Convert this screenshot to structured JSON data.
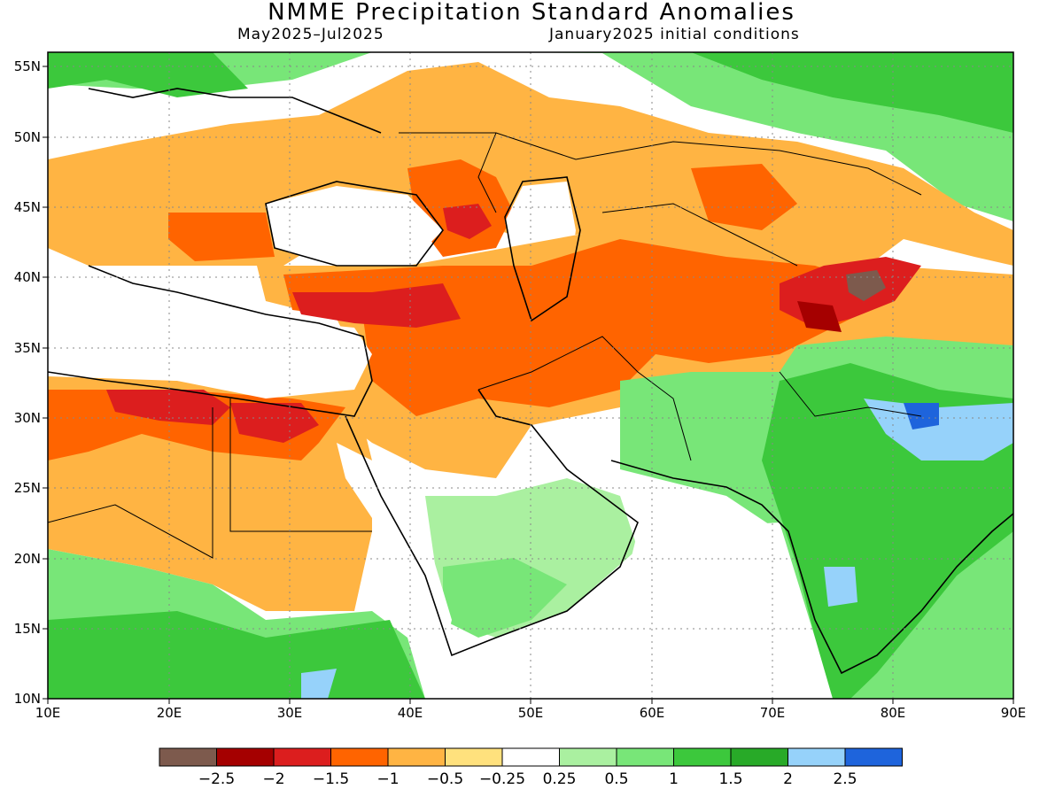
{
  "title": "NMME Precipitation Standard Anomalies",
  "subtitle_left": "May2025–Jul2025",
  "subtitle_right": "January2025 initial conditions",
  "lat_labels": [
    "55N",
    "50N",
    "45N",
    "40N",
    "35N",
    "30N",
    "25N",
    "20N",
    "15N",
    "10N"
  ],
  "lon_labels": [
    "10E",
    "20E",
    "30E",
    "40E",
    "50E",
    "60E",
    "70E",
    "80E",
    "90E"
  ],
  "colorbar": {
    "colors": [
      "#7d5a4d",
      "#a50000",
      "#dc1e1e",
      "#ff6400",
      "#ffb443",
      "#ffe17d",
      "#ffffff",
      "#aaf0a0",
      "#78e678",
      "#3cc83c",
      "#28aa28",
      "#96d2fa",
      "#1e64dc"
    ],
    "labels": [
      "−2.5",
      "−2",
      "−1.5",
      "−1",
      "−0.5",
      "−0.25",
      "0.25",
      "0.5",
      "1",
      "1.5",
      "2",
      "2.5"
    ]
  },
  "map": {
    "projection": "lat-lon",
    "lon_range": [
      10,
      90
    ],
    "lat_range": [
      10,
      56
    ],
    "field": "precipitation standard anomaly"
  }
}
